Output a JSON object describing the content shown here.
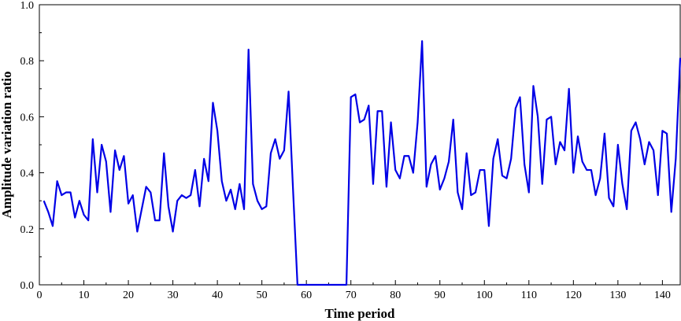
{
  "chart_data": {
    "type": "line",
    "title": "",
    "xlabel": "Time period",
    "ylabel": "Amplitude variation ratio",
    "xlim": [
      0,
      144
    ],
    "ylim": [
      0,
      1.0
    ],
    "xticks": [
      0,
      10,
      20,
      30,
      40,
      50,
      60,
      70,
      80,
      90,
      100,
      110,
      120,
      130,
      140
    ],
    "yticks": [
      0.0,
      0.2,
      0.4,
      0.6,
      0.8,
      1.0
    ],
    "xtick_labels": [
      "0",
      "10",
      "20",
      "30",
      "40",
      "50",
      "60",
      "70",
      "80",
      "90",
      "100",
      "110",
      "120",
      "130",
      "140"
    ],
    "ytick_labels": [
      "0.0",
      "0.2",
      "0.4",
      "0.6",
      "0.8",
      "1.0"
    ],
    "grid": false,
    "color": "#0000e6",
    "series": [
      {
        "x": [
          1,
          2,
          3,
          4,
          5,
          6,
          7,
          8,
          9,
          10,
          11,
          12,
          13,
          14,
          15,
          16,
          17,
          18,
          19,
          20,
          21,
          22,
          23,
          24,
          25,
          26,
          27,
          28,
          29,
          30,
          31,
          32,
          33,
          34,
          35,
          36,
          37,
          38,
          39,
          40,
          41,
          42,
          43,
          44,
          45,
          46,
          47,
          48,
          49,
          50,
          51,
          52,
          53,
          54,
          55,
          56,
          57,
          58,
          59,
          60,
          61,
          62,
          63,
          64,
          65,
          66,
          67,
          68,
          69,
          70,
          71,
          72,
          73,
          74,
          75,
          76,
          77,
          78,
          79,
          80,
          81,
          82,
          83,
          84,
          85,
          86,
          87,
          88,
          89,
          90,
          91,
          92,
          93,
          94,
          95,
          96,
          97,
          98,
          99,
          100,
          101,
          102,
          103,
          104,
          105,
          106,
          107,
          108,
          109,
          110,
          111,
          112,
          113,
          114,
          115,
          116,
          117,
          118,
          119,
          120,
          121,
          122,
          123,
          124,
          125,
          126,
          127,
          128,
          129,
          130,
          131,
          132,
          133,
          134,
          135,
          136,
          137,
          138,
          139,
          140,
          141,
          142,
          143,
          144
        ],
        "values": [
          0.3,
          0.26,
          0.21,
          0.37,
          0.32,
          0.33,
          0.33,
          0.24,
          0.3,
          0.25,
          0.23,
          0.52,
          0.33,
          0.5,
          0.44,
          0.26,
          0.48,
          0.41,
          0.46,
          0.29,
          0.32,
          0.19,
          0.27,
          0.35,
          0.33,
          0.23,
          0.23,
          0.47,
          0.28,
          0.19,
          0.3,
          0.32,
          0.31,
          0.32,
          0.41,
          0.28,
          0.45,
          0.37,
          0.65,
          0.55,
          0.37,
          0.3,
          0.34,
          0.27,
          0.36,
          0.27,
          0.84,
          0.36,
          0.3,
          0.27,
          0.28,
          0.47,
          0.52,
          0.45,
          0.48,
          0.69,
          0.34,
          0.0,
          0.0,
          0.0,
          0.0,
          0.0,
          0.0,
          0.0,
          0.0,
          0.0,
          0.0,
          0.0,
          0.0,
          0.67,
          0.68,
          0.58,
          0.59,
          0.64,
          0.36,
          0.62,
          0.62,
          0.35,
          0.58,
          0.41,
          0.38,
          0.46,
          0.46,
          0.4,
          0.58,
          0.87,
          0.35,
          0.43,
          0.46,
          0.34,
          0.38,
          0.44,
          0.59,
          0.33,
          0.27,
          0.47,
          0.32,
          0.33,
          0.41,
          0.41,
          0.21,
          0.45,
          0.52,
          0.39,
          0.38,
          0.45,
          0.63,
          0.67,
          0.43,
          0.33,
          0.71,
          0.6,
          0.36,
          0.59,
          0.6,
          0.43,
          0.51,
          0.48,
          0.7,
          0.4,
          0.53,
          0.44,
          0.41,
          0.41,
          0.32,
          0.38,
          0.54,
          0.31,
          0.28,
          0.5,
          0.36,
          0.27,
          0.55,
          0.58,
          0.52,
          0.43,
          0.51,
          0.48,
          0.32,
          0.55,
          0.54,
          0.26,
          0.45,
          0.81
        ]
      }
    ]
  }
}
